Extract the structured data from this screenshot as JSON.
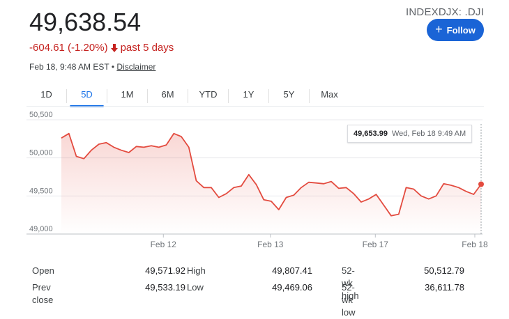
{
  "header": {
    "price": "49,638.54",
    "ticker": "INDEXDJX: .DJI",
    "follow_label": "Follow",
    "change_text": "-604.61 (-1.20%)",
    "change_period": "past 5 days",
    "change_color": "#c5221f",
    "timestamp": "Feb 18, 9:48 AM EST",
    "meta_sep": " • ",
    "disclaimer": "Disclaimer"
  },
  "tabs": [
    {
      "label": "1D"
    },
    {
      "label": "5D",
      "active": true
    },
    {
      "label": "1M"
    },
    {
      "label": "6M"
    },
    {
      "label": "YTD"
    },
    {
      "label": "1Y"
    },
    {
      "label": "5Y"
    },
    {
      "label": "Max"
    }
  ],
  "tooltip": {
    "value": "49,653.99",
    "date": "Wed, Feb 18 9:49 AM"
  },
  "chart_data": {
    "type": "line",
    "y_ticks": [
      "50,500",
      "50,000",
      "49,500",
      "49,000"
    ],
    "ylim": [
      49000,
      50500
    ],
    "x_ticks": [
      "Feb 12",
      "Feb 13",
      "Feb 17",
      "Feb 18"
    ],
    "line_color": "#e34b3f",
    "grid": true,
    "series": [
      {
        "values": [
          50260,
          50320,
          50020,
          49990,
          50100,
          50180,
          50200,
          50140,
          50100,
          50070,
          50150,
          50140,
          50160,
          50140,
          50170,
          50320,
          50280,
          50140,
          49700,
          49610,
          49610,
          49480,
          49530,
          49610,
          49630,
          49780,
          49650,
          49450,
          49430,
          49320,
          49480,
          49510,
          49610,
          49680,
          49670,
          49660,
          49690,
          49600,
          49610,
          49530,
          49420,
          49460,
          49520,
          49380,
          49240,
          49260,
          49610,
          49590,
          49500,
          49460,
          49500,
          49660,
          49640,
          49610,
          49560,
          49520,
          49654
        ]
      }
    ]
  },
  "stats": {
    "open_label": "Open",
    "open_value": "49,571.92",
    "prev_close_label": "Prev close",
    "prev_close_value": "49,533.19",
    "high_label": "High",
    "high_value": "49,807.41",
    "low_label": "Low",
    "low_value": "49,469.06",
    "wk_high_label": "52-wk high",
    "wk_high_value": "50,512.79",
    "wk_low_label": "52-wk low",
    "wk_low_value": "36,611.78"
  }
}
